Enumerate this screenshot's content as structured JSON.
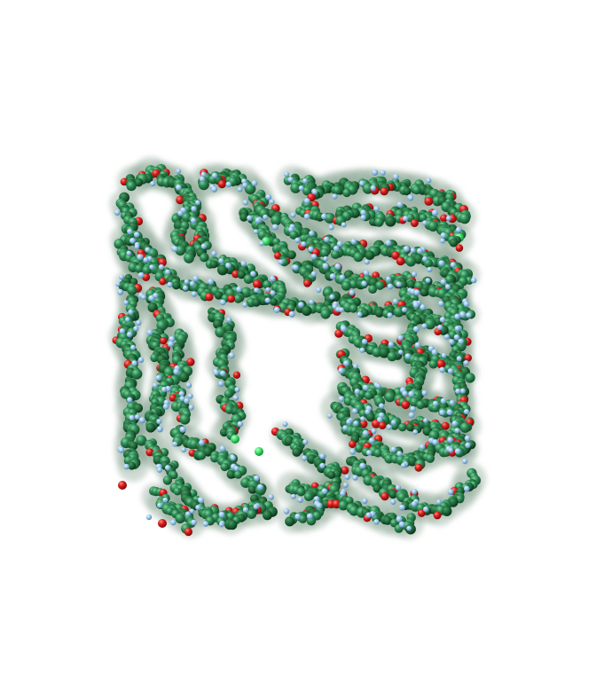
{
  "scene": {
    "background_color": "#ffffff",
    "atom_colors": {
      "carbon_dark": "#1f6b3a",
      "carbon": "#2e8b57",
      "carbon_light": "#4fae6a",
      "oxygen": "#d81e1e",
      "hydrogen": "#9cc8ee",
      "halogen": "#3fe06a",
      "surface": "#7c9a86"
    }
  }
}
